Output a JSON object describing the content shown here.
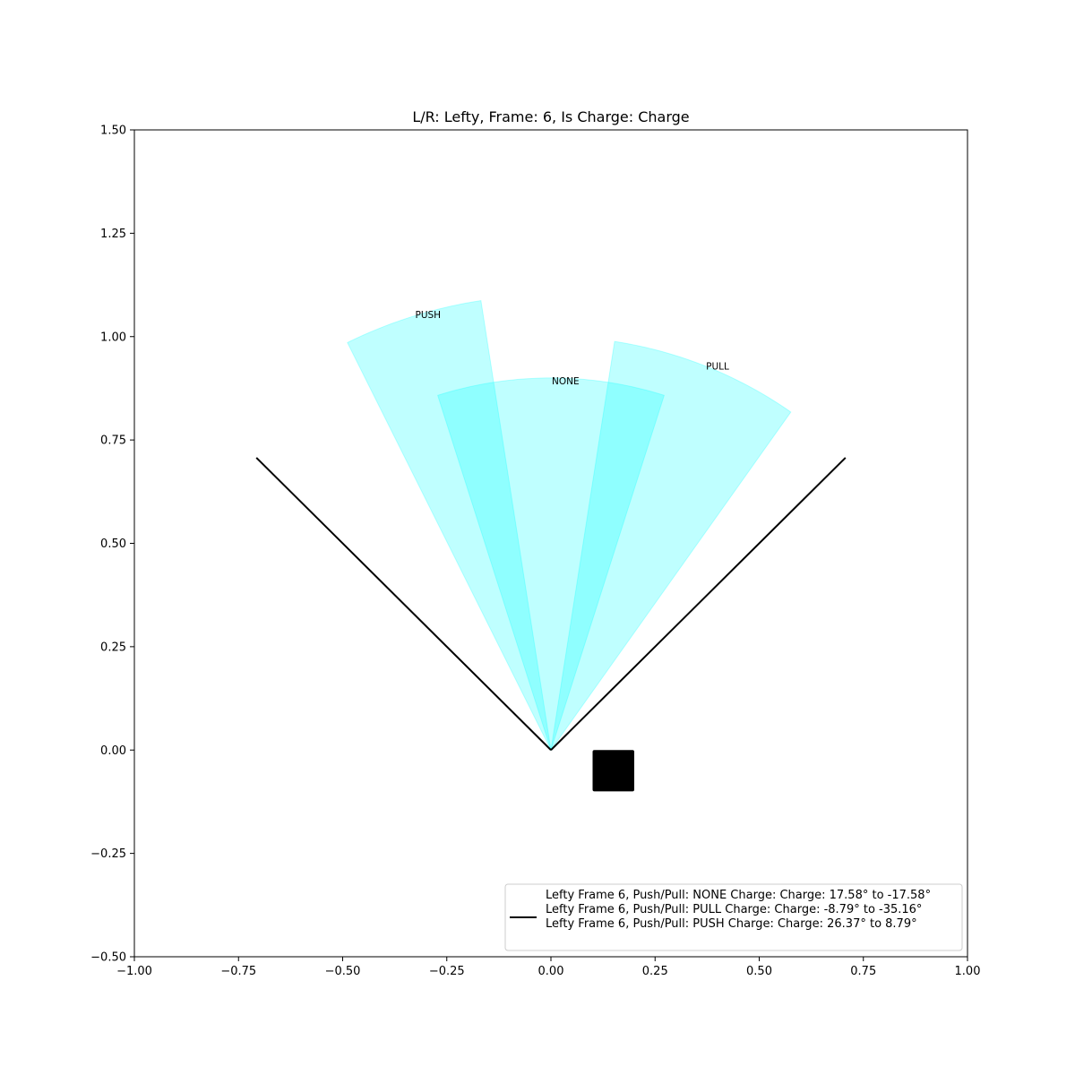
{
  "chart_data": {
    "type": "polar-wedges",
    "title": "L/R: Lefty, Frame: 6, Is Charge: Charge",
    "xlabel": "",
    "ylabel": "",
    "xlim": [
      -1.0,
      1.0
    ],
    "ylim": [
      -0.5,
      1.5
    ],
    "x_ticks": [
      {
        "value": -1.0,
        "label": "−1.00"
      },
      {
        "value": -0.75,
        "label": "−0.75"
      },
      {
        "value": -0.5,
        "label": "−0.50"
      },
      {
        "value": -0.25,
        "label": "−0.25"
      },
      {
        "value": 0.0,
        "label": "0.00"
      },
      {
        "value": 0.25,
        "label": "0.25"
      },
      {
        "value": 0.5,
        "label": "0.50"
      },
      {
        "value": 0.75,
        "label": "0.75"
      },
      {
        "value": 1.0,
        "label": "1.00"
      }
    ],
    "y_ticks": [
      {
        "value": -0.5,
        "label": "−0.50"
      },
      {
        "value": -0.25,
        "label": "−0.25"
      },
      {
        "value": 0.0,
        "label": "0.00"
      },
      {
        "value": 0.25,
        "label": "0.25"
      },
      {
        "value": 0.5,
        "label": "0.50"
      },
      {
        "value": 0.75,
        "label": "0.75"
      },
      {
        "value": 1.0,
        "label": "1.00"
      },
      {
        "value": 1.25,
        "label": "1.25"
      },
      {
        "value": 1.5,
        "label": "1.50"
      }
    ],
    "grid": false,
    "wedge_color": "#00ffff",
    "wedges": [
      {
        "name": "NONE",
        "label": "NONE",
        "angle_from_deg": 17.58,
        "angle_to_deg": -17.58,
        "radius": 0.9,
        "label_at": [
          0.035,
          0.885
        ]
      },
      {
        "name": "PULL",
        "label": "PULL",
        "angle_from_deg": -8.79,
        "angle_to_deg": -35.16,
        "radius": 1.0,
        "label_at": [
          0.4,
          0.92
        ]
      },
      {
        "name": "PUSH",
        "label": "PUSH",
        "angle_from_deg": 26.37,
        "angle_to_deg": 8.79,
        "radius": 1.1,
        "label_at": [
          -0.295,
          1.045
        ]
      }
    ],
    "boundary_lines": {
      "color": "#000000",
      "angles_deg": [
        45,
        -45
      ],
      "length": 1.0
    },
    "marker": {
      "shape": "square",
      "color": "#000000",
      "x": [
        0.1,
        0.2
      ],
      "y": [
        -0.1,
        0.0
      ]
    },
    "legend": {
      "location": "lower right",
      "entries": [
        "Lefty Frame 6, Push/Pull: NONE Charge: Charge: 17.58° to -17.58°",
        "Lefty Frame 6, Push/Pull: PULL Charge: Charge: -8.79° to -35.16°",
        "Lefty Frame 6, Push/Pull: PUSH Charge: Charge: 26.37° to 8.79°"
      ]
    }
  }
}
